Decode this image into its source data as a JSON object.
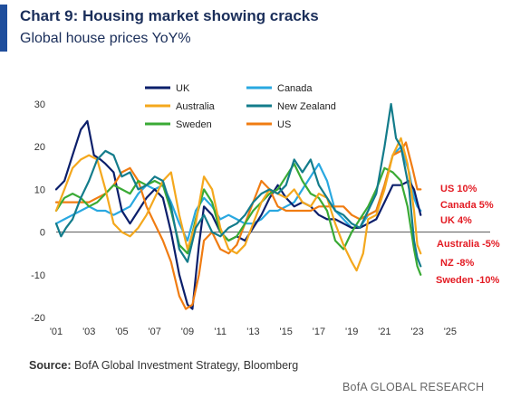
{
  "header": {
    "title": "Chart 9: Housing market showing cracks",
    "subtitle": "Global house prices YoY%"
  },
  "footer": {
    "source_label": "Source:",
    "source_text": "BofA Global Investment Strategy, Bloomberg",
    "brand": "BofA GLOBAL RESEARCH"
  },
  "colors": {
    "accent": "#1f4e9c",
    "title": "#1a2e5a",
    "end_labels": "#e31b23"
  },
  "chart_data": {
    "type": "line",
    "xlim": [
      2001,
      2026
    ],
    "ylim": [
      -20,
      30
    ],
    "x_ticks": [
      2001,
      2003,
      2005,
      2007,
      2009,
      2011,
      2013,
      2015,
      2017,
      2019,
      2021,
      2023,
      2025
    ],
    "x_tick_labels": [
      "'01",
      "'03",
      "'05",
      "'07",
      "'09",
      "'11",
      "'13",
      "'15",
      "'17",
      "'19",
      "'21",
      "'23",
      "'25"
    ],
    "y_ticks": [
      -20,
      -10,
      0,
      10,
      20,
      30
    ],
    "y_tick_labels": [
      "-20",
      "-10",
      "0",
      "10",
      "20",
      "30"
    ],
    "grid": false,
    "zero_line": true,
    "legend_position": "top-center",
    "series": [
      {
        "name": "UK",
        "color": "#0b1f6b",
        "points": [
          [
            2001.0,
            10
          ],
          [
            2001.5,
            12
          ],
          [
            2002.0,
            18
          ],
          [
            2002.5,
            24
          ],
          [
            2002.9,
            26
          ],
          [
            2003.3,
            18
          ],
          [
            2003.7,
            17
          ],
          [
            2004.0,
            16
          ],
          [
            2004.5,
            14
          ],
          [
            2005.0,
            5
          ],
          [
            2005.5,
            2
          ],
          [
            2006.0,
            5
          ],
          [
            2006.5,
            8
          ],
          [
            2007.0,
            10
          ],
          [
            2007.5,
            8
          ],
          [
            2008.0,
            0
          ],
          [
            2008.5,
            -10
          ],
          [
            2009.0,
            -17
          ],
          [
            2009.3,
            -18
          ],
          [
            2009.7,
            -3
          ],
          [
            2010.0,
            6
          ],
          [
            2010.5,
            4
          ],
          [
            2011.0,
            0
          ],
          [
            2011.5,
            -2
          ],
          [
            2012.0,
            -1
          ],
          [
            2012.5,
            -2
          ],
          [
            2013.0,
            1
          ],
          [
            2013.5,
            4
          ],
          [
            2014.0,
            8
          ],
          [
            2014.5,
            11
          ],
          [
            2015.0,
            8
          ],
          [
            2015.5,
            6
          ],
          [
            2016.0,
            7
          ],
          [
            2016.5,
            6
          ],
          [
            2017.0,
            4
          ],
          [
            2017.5,
            3
          ],
          [
            2018.0,
            3
          ],
          [
            2018.5,
            2
          ],
          [
            2019.0,
            1
          ],
          [
            2019.5,
            1
          ],
          [
            2020.0,
            2
          ],
          [
            2020.5,
            3
          ],
          [
            2021.0,
            7
          ],
          [
            2021.5,
            11
          ],
          [
            2022.0,
            11
          ],
          [
            2022.5,
            12
          ],
          [
            2022.8,
            10
          ],
          [
            2023.0,
            7
          ],
          [
            2023.2,
            4
          ]
        ]
      },
      {
        "name": "Canada",
        "color": "#29a8e0",
        "points": [
          [
            2001.0,
            2
          ],
          [
            2001.5,
            3
          ],
          [
            2002.0,
            4
          ],
          [
            2002.5,
            5
          ],
          [
            2003.0,
            6
          ],
          [
            2003.5,
            5
          ],
          [
            2004.0,
            5
          ],
          [
            2004.5,
            4
          ],
          [
            2005.0,
            5
          ],
          [
            2005.5,
            6
          ],
          [
            2006.0,
            9
          ],
          [
            2006.5,
            11
          ],
          [
            2007.0,
            10
          ],
          [
            2007.5,
            11
          ],
          [
            2008.0,
            7
          ],
          [
            2008.5,
            2
          ],
          [
            2009.0,
            -2
          ],
          [
            2009.5,
            5
          ],
          [
            2010.0,
            8
          ],
          [
            2010.5,
            6
          ],
          [
            2011.0,
            3
          ],
          [
            2011.5,
            4
          ],
          [
            2012.0,
            3
          ],
          [
            2012.5,
            2
          ],
          [
            2013.0,
            2
          ],
          [
            2013.5,
            3
          ],
          [
            2014.0,
            5
          ],
          [
            2014.5,
            5
          ],
          [
            2015.0,
            6
          ],
          [
            2015.5,
            7
          ],
          [
            2016.0,
            10
          ],
          [
            2016.5,
            13
          ],
          [
            2017.0,
            16
          ],
          [
            2017.5,
            12
          ],
          [
            2018.0,
            5
          ],
          [
            2018.5,
            3
          ],
          [
            2019.0,
            1
          ],
          [
            2019.5,
            1
          ],
          [
            2020.0,
            4
          ],
          [
            2020.5,
            5
          ],
          [
            2021.0,
            11
          ],
          [
            2021.5,
            18
          ],
          [
            2022.0,
            20
          ],
          [
            2022.5,
            14
          ],
          [
            2022.8,
            8
          ],
          [
            2023.0,
            6
          ],
          [
            2023.2,
            5
          ]
        ]
      },
      {
        "name": "Australia",
        "color": "#f4a81d",
        "points": [
          [
            2001.0,
            5
          ],
          [
            2001.5,
            10
          ],
          [
            2002.0,
            15
          ],
          [
            2002.5,
            17
          ],
          [
            2003.0,
            18
          ],
          [
            2003.5,
            17
          ],
          [
            2004.0,
            10
          ],
          [
            2004.5,
            2
          ],
          [
            2005.0,
            0
          ],
          [
            2005.5,
            -1
          ],
          [
            2006.0,
            1
          ],
          [
            2006.5,
            4
          ],
          [
            2007.0,
            8
          ],
          [
            2007.5,
            12
          ],
          [
            2008.0,
            14
          ],
          [
            2008.5,
            4
          ],
          [
            2009.0,
            -4
          ],
          [
            2009.5,
            2
          ],
          [
            2010.0,
            13
          ],
          [
            2010.5,
            10
          ],
          [
            2011.0,
            1
          ],
          [
            2011.5,
            -4
          ],
          [
            2012.0,
            -5
          ],
          [
            2012.5,
            -3
          ],
          [
            2013.0,
            2
          ],
          [
            2013.5,
            7
          ],
          [
            2014.0,
            10
          ],
          [
            2014.5,
            9
          ],
          [
            2015.0,
            8
          ],
          [
            2015.5,
            10
          ],
          [
            2016.0,
            7
          ],
          [
            2016.5,
            6
          ],
          [
            2017.0,
            9
          ],
          [
            2017.5,
            8
          ],
          [
            2018.0,
            2
          ],
          [
            2018.5,
            -3
          ],
          [
            2019.0,
            -7
          ],
          [
            2019.3,
            -9
          ],
          [
            2019.7,
            -5
          ],
          [
            2020.0,
            3
          ],
          [
            2020.5,
            4
          ],
          [
            2021.0,
            10
          ],
          [
            2021.5,
            18
          ],
          [
            2022.0,
            22
          ],
          [
            2022.4,
            16
          ],
          [
            2022.8,
            5
          ],
          [
            2023.0,
            -3
          ],
          [
            2023.2,
            -5
          ]
        ]
      },
      {
        "name": "New Zealand",
        "color": "#137c8b",
        "points": [
          [
            2001.0,
            2
          ],
          [
            2001.3,
            -1
          ],
          [
            2001.6,
            1
          ],
          [
            2002.0,
            3
          ],
          [
            2002.5,
            8
          ],
          [
            2003.0,
            12
          ],
          [
            2003.5,
            17
          ],
          [
            2004.0,
            19
          ],
          [
            2004.5,
            18
          ],
          [
            2005.0,
            13
          ],
          [
            2005.5,
            14
          ],
          [
            2006.0,
            10
          ],
          [
            2006.5,
            11
          ],
          [
            2007.0,
            13
          ],
          [
            2007.5,
            12
          ],
          [
            2008.0,
            6
          ],
          [
            2008.5,
            -4
          ],
          [
            2009.0,
            -7
          ],
          [
            2009.5,
            1
          ],
          [
            2010.0,
            4
          ],
          [
            2010.5,
            0
          ],
          [
            2011.0,
            -1
          ],
          [
            2011.5,
            1
          ],
          [
            2012.0,
            2
          ],
          [
            2012.5,
            4
          ],
          [
            2013.0,
            7
          ],
          [
            2013.5,
            9
          ],
          [
            2014.0,
            10
          ],
          [
            2014.5,
            9
          ],
          [
            2015.0,
            11
          ],
          [
            2015.5,
            17
          ],
          [
            2016.0,
            14
          ],
          [
            2016.5,
            17
          ],
          [
            2017.0,
            11
          ],
          [
            2017.5,
            8
          ],
          [
            2018.0,
            5
          ],
          [
            2018.5,
            4
          ],
          [
            2019.0,
            2
          ],
          [
            2019.5,
            1
          ],
          [
            2020.0,
            5
          ],
          [
            2020.5,
            9
          ],
          [
            2021.0,
            20
          ],
          [
            2021.4,
            30
          ],
          [
            2021.7,
            22
          ],
          [
            2022.0,
            20
          ],
          [
            2022.5,
            10
          ],
          [
            2022.8,
            -2
          ],
          [
            2023.0,
            -6
          ],
          [
            2023.2,
            -8
          ]
        ]
      },
      {
        "name": "Sweden",
        "color": "#3aaa35",
        "points": [
          [
            2001.0,
            5
          ],
          [
            2001.5,
            8
          ],
          [
            2002.0,
            9
          ],
          [
            2002.5,
            8
          ],
          [
            2003.0,
            6
          ],
          [
            2003.5,
            7
          ],
          [
            2004.0,
            9
          ],
          [
            2004.5,
            11
          ],
          [
            2005.0,
            10
          ],
          [
            2005.5,
            9
          ],
          [
            2006.0,
            12
          ],
          [
            2006.5,
            11
          ],
          [
            2007.0,
            12
          ],
          [
            2007.5,
            11
          ],
          [
            2008.0,
            5
          ],
          [
            2008.5,
            -3
          ],
          [
            2009.0,
            -5
          ],
          [
            2009.5,
            3
          ],
          [
            2010.0,
            10
          ],
          [
            2010.5,
            7
          ],
          [
            2011.0,
            0
          ],
          [
            2011.5,
            -2
          ],
          [
            2012.0,
            -1
          ],
          [
            2012.5,
            2
          ],
          [
            2013.0,
            5
          ],
          [
            2013.5,
            7
          ],
          [
            2014.0,
            9
          ],
          [
            2014.5,
            10
          ],
          [
            2015.0,
            13
          ],
          [
            2015.5,
            16
          ],
          [
            2016.0,
            12
          ],
          [
            2016.5,
            9
          ],
          [
            2017.0,
            8
          ],
          [
            2017.5,
            5
          ],
          [
            2018.0,
            -2
          ],
          [
            2018.5,
            -4
          ],
          [
            2019.0,
            0
          ],
          [
            2019.5,
            3
          ],
          [
            2020.0,
            6
          ],
          [
            2020.5,
            10
          ],
          [
            2021.0,
            15
          ],
          [
            2021.5,
            14
          ],
          [
            2022.0,
            12
          ],
          [
            2022.4,
            6
          ],
          [
            2022.8,
            -4
          ],
          [
            2023.0,
            -8
          ],
          [
            2023.2,
            -10
          ]
        ]
      },
      {
        "name": "US",
        "color": "#f07c12",
        "points": [
          [
            2001.0,
            7
          ],
          [
            2001.5,
            7
          ],
          [
            2002.0,
            7
          ],
          [
            2002.5,
            7
          ],
          [
            2003.0,
            7
          ],
          [
            2003.5,
            8
          ],
          [
            2004.0,
            9
          ],
          [
            2004.5,
            11
          ],
          [
            2005.0,
            14
          ],
          [
            2005.5,
            15
          ],
          [
            2006.0,
            12
          ],
          [
            2006.5,
            6
          ],
          [
            2007.0,
            2
          ],
          [
            2007.5,
            -2
          ],
          [
            2008.0,
            -7
          ],
          [
            2008.5,
            -15
          ],
          [
            2008.9,
            -18
          ],
          [
            2009.3,
            -17
          ],
          [
            2009.7,
            -10
          ],
          [
            2010.0,
            -2
          ],
          [
            2010.5,
            0
          ],
          [
            2011.0,
            -4
          ],
          [
            2011.5,
            -5
          ],
          [
            2012.0,
            -3
          ],
          [
            2012.5,
            2
          ],
          [
            2013.0,
            7
          ],
          [
            2013.5,
            12
          ],
          [
            2014.0,
            10
          ],
          [
            2014.5,
            6
          ],
          [
            2015.0,
            5
          ],
          [
            2015.5,
            5
          ],
          [
            2016.0,
            5
          ],
          [
            2016.5,
            5
          ],
          [
            2017.0,
            6
          ],
          [
            2017.5,
            6
          ],
          [
            2018.0,
            6
          ],
          [
            2018.5,
            6
          ],
          [
            2019.0,
            4
          ],
          [
            2019.5,
            3
          ],
          [
            2020.0,
            4
          ],
          [
            2020.5,
            5
          ],
          [
            2021.0,
            11
          ],
          [
            2021.5,
            18
          ],
          [
            2022.0,
            19
          ],
          [
            2022.3,
            21
          ],
          [
            2022.7,
            15
          ],
          [
            2023.0,
            10
          ],
          [
            2023.2,
            10
          ]
        ]
      }
    ],
    "end_labels": [
      "US 10%",
      "Canada 5%",
      "UK 4%",
      "Australia -5%",
      "NZ -8%",
      "Sweden -10%"
    ]
  }
}
